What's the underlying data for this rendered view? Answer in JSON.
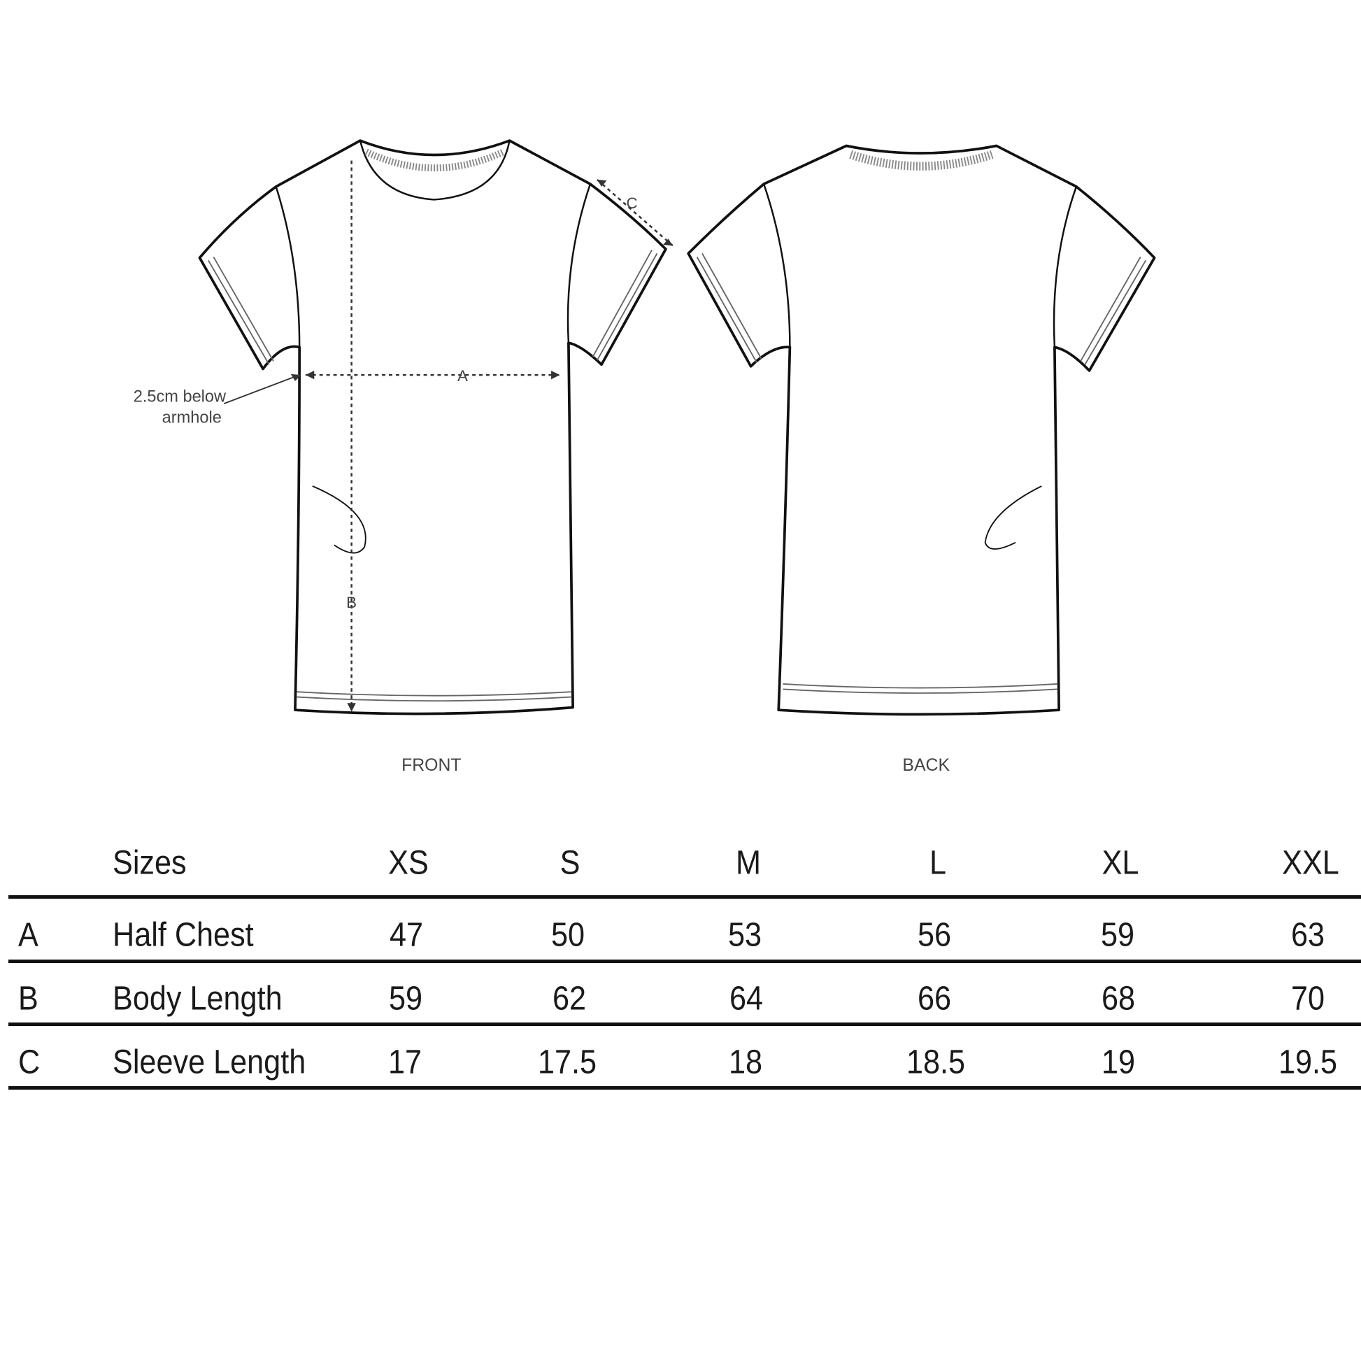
{
  "diagram": {
    "front_label": "FRONT",
    "back_label": "BACK",
    "armhole_note_line1": "2.5cm below",
    "armhole_note_line2": "armhole",
    "measure_a": "A",
    "measure_b": "B",
    "measure_c": "C"
  },
  "table": {
    "header_label": "Sizes",
    "sizes": [
      "XS",
      "S",
      "M",
      "L",
      "XL",
      "XXL"
    ],
    "rows": [
      {
        "code": "A",
        "label": "Half Chest",
        "values": [
          "47",
          "50",
          "53",
          "56",
          "59",
          "63"
        ]
      },
      {
        "code": "B",
        "label": "Body Length",
        "values": [
          "59",
          "62",
          "64",
          "66",
          "68",
          "70"
        ]
      },
      {
        "code": "C",
        "label": "Sleeve Length",
        "values": [
          "17",
          "17.5",
          "18",
          "18.5",
          "19",
          "19.5"
        ]
      }
    ]
  }
}
